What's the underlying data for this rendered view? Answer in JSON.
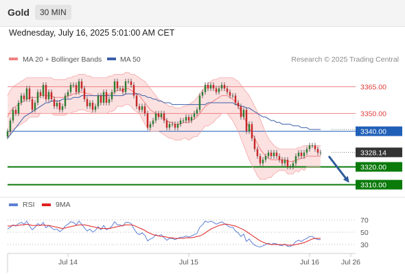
{
  "header": {
    "asset": "Gold",
    "timeframe": "30 MIN"
  },
  "datetime": "Wednesday, July 16, 2025 5:01:00 AM CET",
  "colors": {
    "bb_line": "#f08080",
    "bb_fill": "#fcdcdc",
    "ma50": "#3b5ea8",
    "up_candle": "#2e7d32",
    "down_candle": "#c62828",
    "green_level": "#0a7a0a",
    "blue_level": "#1f5fb8",
    "forecast_arrow": "#2f5a9b",
    "rsi": "#5b7fd6",
    "rsi_ma": "#e02020",
    "current_price": "#333333"
  },
  "chart_data": [
    {
      "type": "candlestick",
      "name": "price",
      "legend": [
        {
          "label": "MA 20 + Bollinger Bands",
          "icon": "line-swatch"
        },
        {
          "label": "MA 50",
          "icon": "line-swatch"
        }
      ],
      "watermark": "Research © 2025 Trading Central",
      "levels": [
        {
          "value": 3365.0,
          "label": "3365.00",
          "style": "red-line"
        },
        {
          "value": 3350.0,
          "label": "3350.00",
          "style": "red-line"
        },
        {
          "value": 3340.0,
          "label": "3340.00",
          "style": "blue-box"
        },
        {
          "value": 3328.14,
          "label": "3328.14",
          "style": "current-price"
        },
        {
          "value": 3320.0,
          "label": "3320.00",
          "style": "green-box"
        },
        {
          "value": 3310.0,
          "label": "3310.00",
          "style": "green-box"
        }
      ],
      "ylim": [
        3306,
        3376
      ],
      "xlim": [
        0,
        118
      ],
      "x_ticks": [
        {
          "x": 22,
          "label": "Jul 14"
        },
        {
          "x": 66,
          "label": "Jul 15"
        },
        {
          "x": 110,
          "label": "Jul 16"
        },
        {
          "x": 125,
          "label": "Jul 26"
        }
      ],
      "close": [
        3340,
        3346,
        3352,
        3350,
        3356,
        3360,
        3358,
        3364,
        3358,
        3352,
        3356,
        3362,
        3360,
        3366,
        3358,
        3362,
        3358,
        3354,
        3356,
        3352,
        3354,
        3360,
        3362,
        3366,
        3366,
        3362,
        3368,
        3364,
        3358,
        3354,
        3356,
        3352,
        3354,
        3360,
        3356,
        3362,
        3356,
        3358,
        3362,
        3368,
        3364,
        3364,
        3362,
        3368,
        3368,
        3366,
        3360,
        3354,
        3352,
        3354,
        3350,
        3342,
        3344,
        3346,
        3350,
        3348,
        3350,
        3346,
        3342,
        3344,
        3344,
        3342,
        3344,
        3346,
        3346,
        3348,
        3346,
        3348,
        3350,
        3352,
        3360,
        3362,
        3366,
        3364,
        3366,
        3364,
        3362,
        3364,
        3366,
        3364,
        3362,
        3360,
        3360,
        3356,
        3354,
        3348,
        3352,
        3340,
        3344,
        3336,
        3330,
        3326,
        3322,
        3324,
        3326,
        3328,
        3326,
        3328,
        3326,
        3324,
        3322,
        3324,
        3320,
        3320,
        3322,
        3326,
        3328,
        3326,
        3328,
        3330,
        3332,
        3332,
        3330,
        3328,
        3328
      ],
      "ma20": [
        3348,
        3351,
        3353,
        3354,
        3355,
        3356,
        3357,
        3358,
        3359,
        3359,
        3359,
        3359,
        3360,
        3360,
        3360,
        3360,
        3360,
        3359,
        3359,
        3359,
        3359,
        3359,
        3360,
        3360,
        3361,
        3361,
        3362,
        3362,
        3362,
        3361,
        3361,
        3360,
        3360,
        3360,
        3360,
        3360,
        3360,
        3361,
        3361,
        3362,
        3363,
        3363,
        3363,
        3364,
        3364,
        3363,
        3362,
        3361,
        3360,
        3358,
        3356,
        3354,
        3352,
        3351,
        3350,
        3349,
        3348,
        3347,
        3346,
        3345,
        3345,
        3344,
        3344,
        3344,
        3345,
        3345,
        3345,
        3346,
        3347,
        3348,
        3350,
        3352,
        3354,
        3355,
        3356,
        3357,
        3358,
        3359,
        3360,
        3360,
        3360,
        3359,
        3358,
        3356,
        3354,
        3351,
        3348,
        3345,
        3342,
        3339,
        3336,
        3333,
        3330,
        3328,
        3326,
        3325,
        3324,
        3324,
        3324,
        3324,
        3324,
        3324,
        3323,
        3323,
        3323,
        3324,
        3324,
        3325,
        3325,
        3326,
        3326,
        3326,
        3326,
        3326,
        3326
      ],
      "bb_upper": [
        3360,
        3363,
        3365,
        3366,
        3367,
        3368,
        3369,
        3370,
        3370,
        3370,
        3370,
        3370,
        3370,
        3370,
        3370,
        3370,
        3370,
        3369,
        3369,
        3369,
        3369,
        3369,
        3370,
        3370,
        3371,
        3371,
        3372,
        3372,
        3372,
        3371,
        3371,
        3370,
        3370,
        3370,
        3370,
        3370,
        3370,
        3371,
        3371,
        3372,
        3372,
        3372,
        3372,
        3373,
        3373,
        3372,
        3372,
        3371,
        3370,
        3369,
        3368,
        3366,
        3364,
        3362,
        3360,
        3358,
        3357,
        3356,
        3355,
        3354,
        3354,
        3353,
        3353,
        3353,
        3354,
        3354,
        3355,
        3356,
        3357,
        3359,
        3361,
        3363,
        3365,
        3367,
        3368,
        3369,
        3369,
        3370,
        3370,
        3370,
        3370,
        3370,
        3370,
        3369,
        3368,
        3366,
        3364,
        3362,
        3360,
        3357,
        3354,
        3351,
        3347,
        3343,
        3339,
        3336,
        3334,
        3332,
        3331,
        3330,
        3330,
        3330,
        3330,
        3330,
        3330,
        3330,
        3331,
        3331,
        3332,
        3332,
        3332,
        3332,
        3332,
        3332,
        3332
      ],
      "bb_lower": [
        3336,
        3339,
        3341,
        3342,
        3343,
        3344,
        3345,
        3346,
        3348,
        3348,
        3348,
        3348,
        3350,
        3350,
        3350,
        3350,
        3350,
        3349,
        3349,
        3349,
        3349,
        3349,
        3350,
        3350,
        3351,
        3351,
        3352,
        3352,
        3352,
        3351,
        3351,
        3350,
        3350,
        3350,
        3350,
        3350,
        3350,
        3351,
        3351,
        3352,
        3354,
        3354,
        3354,
        3355,
        3355,
        3354,
        3352,
        3351,
        3350,
        3347,
        3344,
        3342,
        3340,
        3340,
        3340,
        3340,
        3339,
        3338,
        3337,
        3336,
        3336,
        3335,
        3335,
        3335,
        3336,
        3336,
        3335,
        3336,
        3337,
        3337,
        3339,
        3341,
        3343,
        3343,
        3344,
        3345,
        3347,
        3348,
        3350,
        3350,
        3350,
        3348,
        3346,
        3343,
        3340,
        3336,
        3332,
        3328,
        3324,
        3321,
        3318,
        3315,
        3313,
        3313,
        3313,
        3314,
        3314,
        3316,
        3317,
        3318,
        3318,
        3318,
        3316,
        3316,
        3316,
        3318,
        3317,
        3319,
        3318,
        3320,
        3320,
        3320,
        3320,
        3320,
        3320
      ],
      "ma50": [
        3336,
        3338,
        3340,
        3342,
        3344,
        3346,
        3348,
        3349,
        3350,
        3351,
        3352,
        3353,
        3354,
        3355,
        3356,
        3356,
        3357,
        3357,
        3357,
        3357,
        3358,
        3358,
        3358,
        3358,
        3359,
        3359,
        3359,
        3360,
        3360,
        3360,
        3360,
        3360,
        3360,
        3360,
        3360,
        3360,
        3360,
        3360,
        3360,
        3360,
        3360,
        3360,
        3360,
        3361,
        3361,
        3361,
        3361,
        3361,
        3361,
        3360,
        3360,
        3359,
        3359,
        3358,
        3358,
        3357,
        3357,
        3356,
        3356,
        3356,
        3355,
        3355,
        3355,
        3355,
        3355,
        3355,
        3355,
        3355,
        3355,
        3355,
        3355,
        3355,
        3355,
        3356,
        3356,
        3356,
        3356,
        3356,
        3356,
        3356,
        3356,
        3356,
        3356,
        3355,
        3355,
        3354,
        3354,
        3353,
        3353,
        3352,
        3351,
        3350,
        3349,
        3348,
        3348,
        3347,
        3346,
        3346,
        3345,
        3345,
        3344,
        3344,
        3344,
        3344,
        3343,
        3343,
        3343,
        3342,
        3342,
        3342,
        3341,
        3341,
        3341,
        3341,
        3341
      ],
      "forecast": [
        {
          "x": 117,
          "y": 3326
        },
        {
          "x": 124,
          "y": 3312
        }
      ]
    },
    {
      "type": "line",
      "name": "rsi",
      "legend": [
        {
          "label": "RSI",
          "icon": "line-swatch"
        },
        {
          "label": "9MA",
          "icon": "line-swatch"
        }
      ],
      "ylim": [
        20,
        80
      ],
      "y_ticks": [
        70,
        50,
        30
      ],
      "rsi": [
        55,
        58,
        62,
        60,
        64,
        66,
        63,
        68,
        60,
        54,
        58,
        64,
        61,
        66,
        57,
        61,
        57,
        54,
        55,
        51,
        54,
        60,
        63,
        67,
        66,
        62,
        68,
        63,
        57,
        52,
        55,
        50,
        53,
        59,
        54,
        61,
        54,
        56,
        60,
        67,
        62,
        62,
        60,
        66,
        66,
        64,
        56,
        49,
        46,
        49,
        45,
        36,
        39,
        41,
        46,
        44,
        46,
        41,
        37,
        40,
        40,
        38,
        40,
        42,
        42,
        44,
        42,
        44,
        46,
        48,
        58,
        62,
        68,
        66,
        68,
        66,
        63,
        65,
        67,
        64,
        61,
        58,
        58,
        52,
        49,
        43,
        47,
        35,
        39,
        33,
        29,
        27,
        26,
        28,
        30,
        32,
        30,
        32,
        31,
        29,
        28,
        31,
        27,
        27,
        30,
        35,
        37,
        35,
        38,
        40,
        43,
        43,
        40,
        38,
        38
      ],
      "rsi_ma": [
        60,
        60,
        61,
        61,
        61,
        62,
        62,
        63,
        62,
        61,
        61,
        61,
        61,
        62,
        61,
        61,
        60,
        59,
        58,
        57,
        56,
        57,
        58,
        59,
        60,
        61,
        62,
        62,
        62,
        61,
        60,
        59,
        58,
        57,
        56,
        56,
        56,
        56,
        57,
        58,
        59,
        60,
        61,
        62,
        62,
        62,
        61,
        59,
        57,
        55,
        53,
        50,
        48,
        46,
        45,
        44,
        43,
        43,
        42,
        41,
        41,
        40,
        40,
        40,
        40,
        41,
        41,
        41,
        42,
        43,
        44,
        46,
        49,
        52,
        55,
        57,
        59,
        61,
        62,
        63,
        63,
        62,
        61,
        60,
        58,
        56,
        54,
        51,
        48,
        45,
        42,
        39,
        36,
        34,
        32,
        31,
        30,
        30,
        30,
        30,
        30,
        30,
        29,
        29,
        29,
        30,
        31,
        32,
        33,
        35,
        37,
        39,
        40,
        40,
        40
      ]
    }
  ]
}
